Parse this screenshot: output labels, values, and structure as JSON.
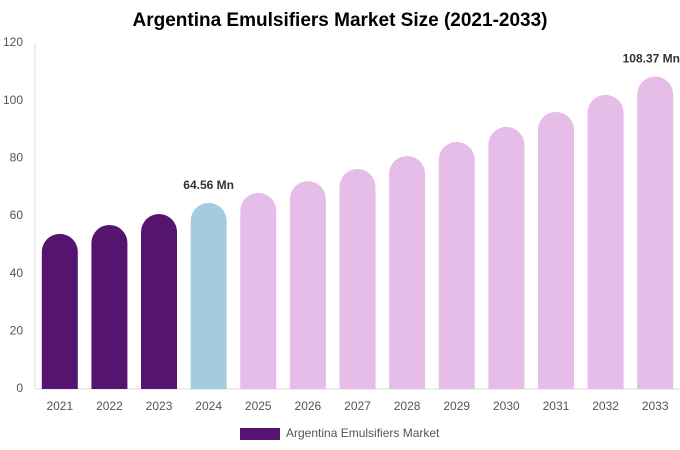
{
  "chart_data": {
    "type": "bar",
    "title": "Argentina Emulsifiers Market Size (2021-2033)",
    "categories": [
      "2021",
      "2022",
      "2023",
      "2024",
      "2025",
      "2026",
      "2027",
      "2028",
      "2029",
      "2030",
      "2031",
      "2032",
      "2033"
    ],
    "series": [
      {
        "name": "Argentina Emulsifiers Market",
        "color": "#551470",
        "values": [
          53.8,
          56.9,
          60.7,
          64.56,
          68.0,
          72.1,
          76.3,
          80.8,
          85.7,
          90.9,
          96.1,
          102.0,
          108.37
        ],
        "value_labels": [
          null,
          null,
          null,
          "64.56 Mn",
          null,
          null,
          null,
          null,
          null,
          null,
          null,
          null,
          "108.37 Mn"
        ],
        "colors": [
          "#551470",
          "#551470",
          "#551470",
          "#a4cbdf",
          "#e6bde8",
          "#e6bde8",
          "#e6bde8",
          "#e6bde8",
          "#e6bde8",
          "#e6bde8",
          "#e6bde8",
          "#e6bde8",
          "#e6bde8"
        ]
      }
    ],
    "ylim": [
      0,
      120
    ],
    "yticks": [
      0,
      20,
      40,
      60,
      80,
      100,
      120
    ],
    "grid": false
  }
}
